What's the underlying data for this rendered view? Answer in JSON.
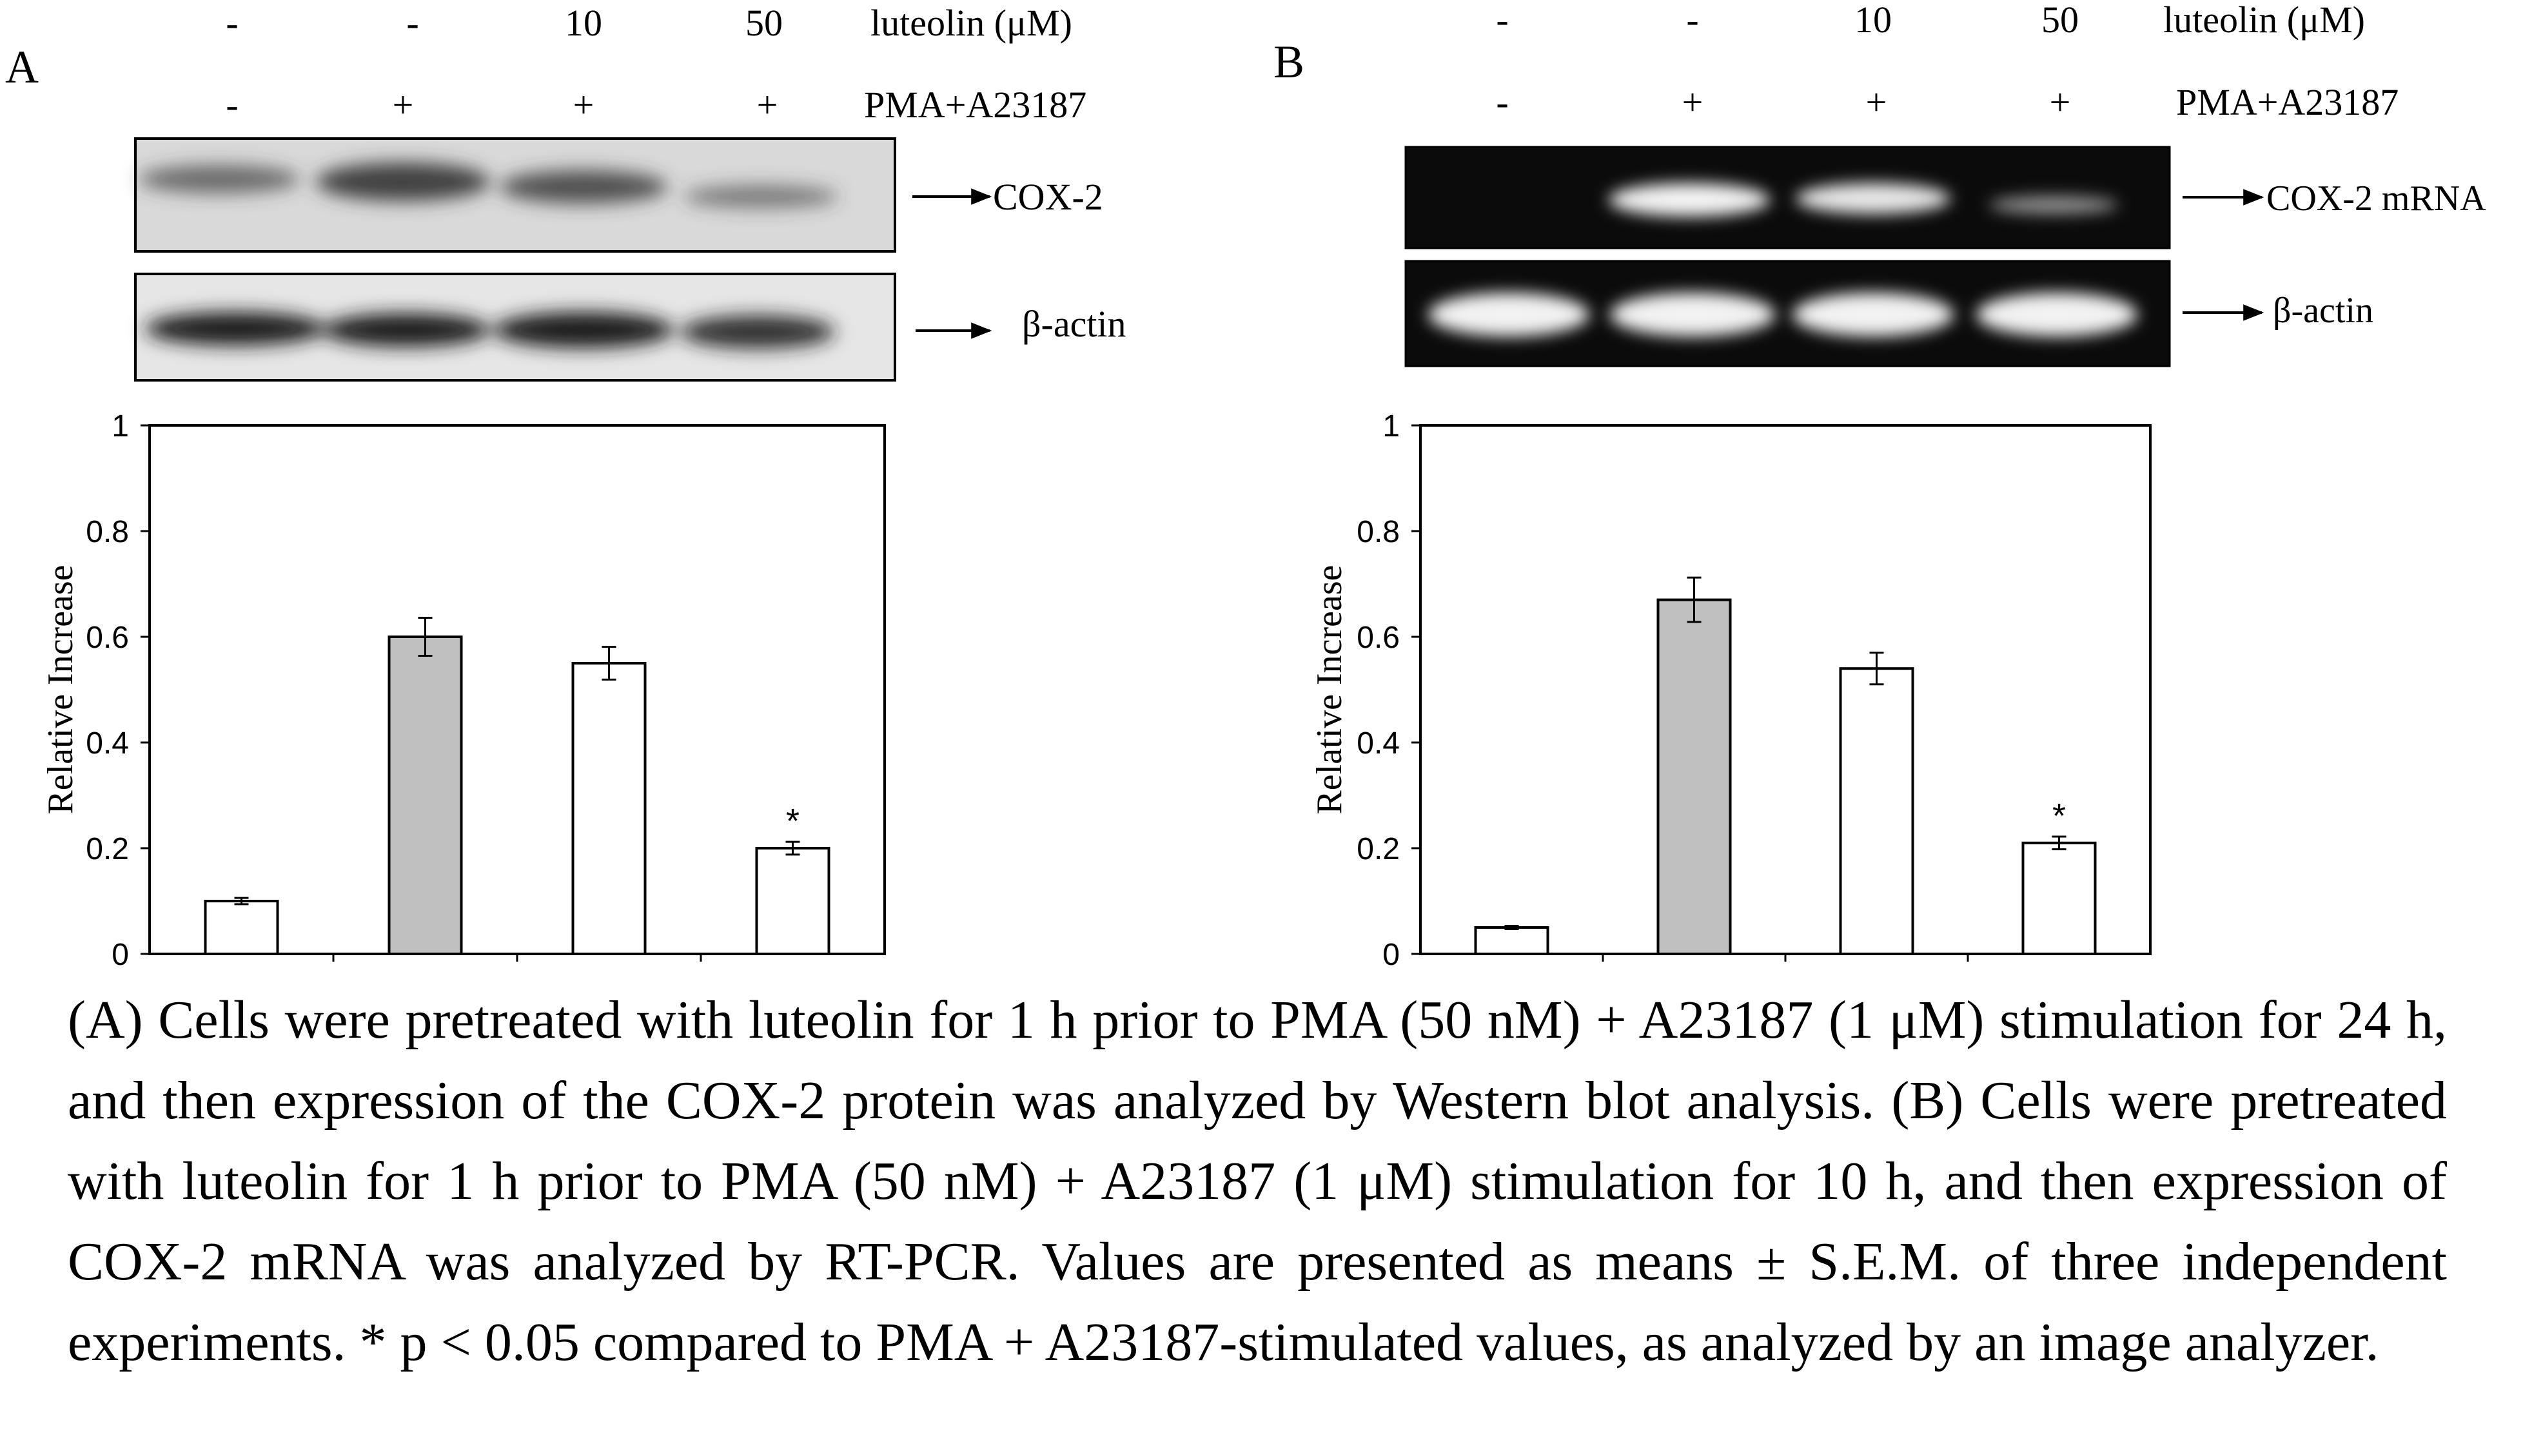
{
  "panel_a": {
    "letter": "A",
    "header_row1": [
      "-",
      "-",
      "10",
      "50"
    ],
    "header_row1_label": "luteolin (μM)",
    "header_row2": [
      "-",
      "+",
      "+",
      "+"
    ],
    "header_row2_label": "PMA+A23187",
    "blot_top_label": "COX-2",
    "blot_bottom_label": "β-actin"
  },
  "panel_b": {
    "letter": "B",
    "header_row1": [
      "-",
      "-",
      "10",
      "50"
    ],
    "header_row1_label": "luteolin (μM)",
    "header_row2": [
      "-",
      "+",
      "+",
      "+"
    ],
    "header_row2_label": "PMA+A23187",
    "blot_top_label": "COX-2 mRNA",
    "blot_bottom_label": "β-actin"
  },
  "chart_data": [
    {
      "type": "bar",
      "panel": "A",
      "ylabel": "Relative Increase",
      "ylim": [
        0,
        1
      ],
      "yticks": [
        "0",
        "0.2",
        "0.4",
        "0.6",
        "0.8",
        "1"
      ],
      "values": [
        0.1,
        0.6,
        0.55,
        0.2
      ],
      "errors": [
        0.006,
        0.036,
        0.031,
        0.012
      ],
      "bar_colors": [
        "#ffffff",
        "#c0c0c0",
        "#ffffff",
        "#ffffff"
      ],
      "annotations": [
        "",
        "",
        "",
        "*"
      ]
    },
    {
      "type": "bar",
      "panel": "B",
      "ylabel": "Relative Increase",
      "ylim": [
        0,
        1
      ],
      "yticks": [
        "0",
        "0.2",
        "0.4",
        "0.6",
        "0.8",
        "1"
      ],
      "values": [
        0.05,
        0.67,
        0.54,
        0.21
      ],
      "errors": [
        0.003,
        0.042,
        0.03,
        0.012
      ],
      "bar_colors": [
        "#ffffff",
        "#c0c0c0",
        "#ffffff",
        "#ffffff"
      ],
      "annotations": [
        "",
        "",
        "",
        "*"
      ]
    }
  ],
  "caption": "(A) Cells were pretreated with luteolin for 1 h prior to PMA (50 nM) + A23187 (1 μM) stimulation for 24 h, and then expression of the COX-2 protein was analyzed by Western blot analysis. (B) Cells were pretreated with luteolin for 1 h prior to PMA (50 nM) + A23187 (1 μM) stimulation for 10 h, and then expression of COX-2 mRNA was analyzed by RT-PCR. Values are presented as means ± S.E.M. of three independent experiments. * p < 0.05 compared to PMA + A23187-stimulated values, as analyzed by an image analyzer."
}
